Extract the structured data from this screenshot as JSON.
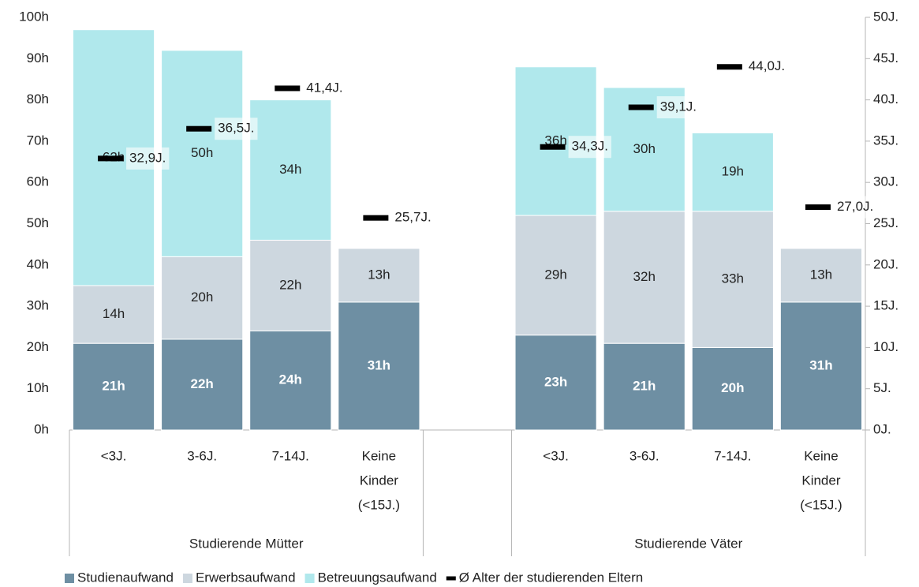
{
  "chart_data": {
    "type": "bar",
    "stacked": true,
    "categories": [
      [
        "<3J."
      ],
      [
        "3-6J."
      ],
      [
        "7-14J."
      ],
      [
        "Keine",
        "Kinder",
        "(<15J.)"
      ],
      null,
      [
        "<3J."
      ],
      [
        "3-6J."
      ],
      [
        "7-14J."
      ],
      [
        "Keine",
        "Kinder",
        "(<15J.)"
      ]
    ],
    "groups": [
      "Studierende Mütter",
      "Studierende Väter"
    ],
    "series": [
      {
        "name": "Studienaufwand",
        "color": "#6e8fa3",
        "label_color": "#ffffff",
        "values": [
          21,
          22,
          24,
          31,
          null,
          23,
          21,
          20,
          31
        ],
        "value_labels": [
          "21h",
          "22h",
          "24h",
          "31h",
          null,
          "23h",
          "21h",
          "20h",
          "31h"
        ]
      },
      {
        "name": "Erwerbsaufwand",
        "color": "#cdd7df",
        "label_color": "#222222",
        "values": [
          14,
          20,
          22,
          13,
          null,
          29,
          32,
          33,
          13
        ],
        "value_labels": [
          "14h",
          "20h",
          "22h",
          "13h",
          null,
          "29h",
          "32h",
          "33h",
          "13h"
        ]
      },
      {
        "name": "Betreuungsaufwand",
        "color": "#b0e8ec",
        "label_color": "#222222",
        "values": [
          62,
          50,
          34,
          null,
          null,
          36,
          30,
          19,
          null
        ],
        "value_labels": [
          "62h",
          "50h",
          "34h",
          null,
          null,
          "36h",
          "30h",
          "19h",
          null
        ]
      },
      {
        "name": "Ø Alter der studierenden Eltern",
        "color": "#000000",
        "type": "marker",
        "axis": "y2",
        "values": [
          32.9,
          36.5,
          41.4,
          25.7,
          null,
          34.3,
          39.1,
          44.0,
          27.0
        ],
        "value_labels": [
          "32,9J.",
          "36,5J.",
          "41,4J.",
          "25,7J.",
          null,
          "34,3J.",
          "39,1J.",
          "44,0J.",
          "27,0J."
        ]
      }
    ],
    "ylim": [
      0,
      100
    ],
    "yticks": [
      {
        "value": 0,
        "label": "0h"
      },
      {
        "value": 10,
        "label": "10h"
      },
      {
        "value": 20,
        "label": "20h"
      },
      {
        "value": 30,
        "label": "30h"
      },
      {
        "value": 40,
        "label": "40h"
      },
      {
        "value": 50,
        "label": "50h"
      },
      {
        "value": 60,
        "label": "60h"
      },
      {
        "value": 70,
        "label": "70h"
      },
      {
        "value": 80,
        "label": "80h"
      },
      {
        "value": 90,
        "label": "90h"
      },
      {
        "value": 100,
        "label": "100h"
      }
    ],
    "y2lim": [
      0,
      50
    ],
    "y2ticks": [
      {
        "value": 0,
        "label": "0J."
      },
      {
        "value": 5,
        "label": "5J."
      },
      {
        "value": 10,
        "label": "10J."
      },
      {
        "value": 15,
        "label": "15J."
      },
      {
        "value": 20,
        "label": "20J."
      },
      {
        "value": 25,
        "label": "25J."
      },
      {
        "value": 30,
        "label": "30J."
      },
      {
        "value": 35,
        "label": "35J."
      },
      {
        "value": 40,
        "label": "40J."
      },
      {
        "value": 45,
        "label": "45J."
      },
      {
        "value": 50,
        "label": "50J."
      }
    ],
    "legend": "bottom",
    "grid": false
  }
}
